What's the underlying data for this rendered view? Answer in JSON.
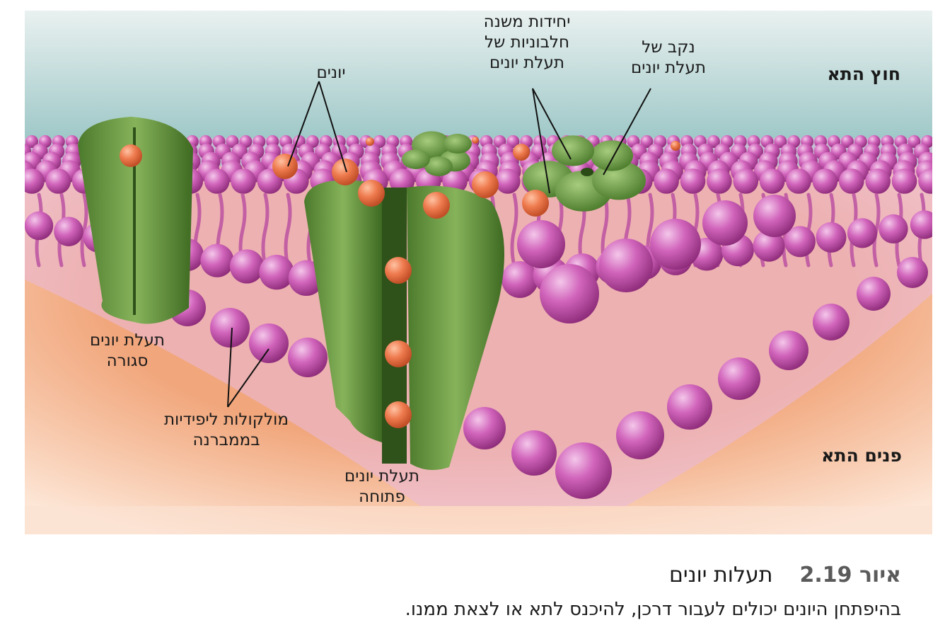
{
  "figure": {
    "labels": {
      "outside_cell": "חוץ התא",
      "inside_cell": "פנים התא",
      "ions": "יונים",
      "protein_subunits": [
        "יחידות משנה",
        "חלבוניות של",
        "תעלת יונים"
      ],
      "channel_pore": [
        "נקב של",
        "תעלת יונים"
      ],
      "closed_channel": [
        "תעלת יונים",
        "סגורה"
      ],
      "lipid_molecules": [
        "מולקולות ליפידיות",
        "בממברנה"
      ],
      "open_channel": [
        "תעלת יונים",
        "פתוחה"
      ]
    },
    "colors": {
      "outside": "#cfe3e4",
      "inside": "#f3b58f",
      "lipid_head": "#c74fae",
      "protein": "#6f9a46",
      "ion": "#e8734a"
    }
  },
  "caption": {
    "figure_number": "איור 2.19",
    "title": "תעלות יונים",
    "text": "בהיפתחן היונים יכולים לעבור דרכן, להיכנס לתא או לצאת ממנו."
  }
}
